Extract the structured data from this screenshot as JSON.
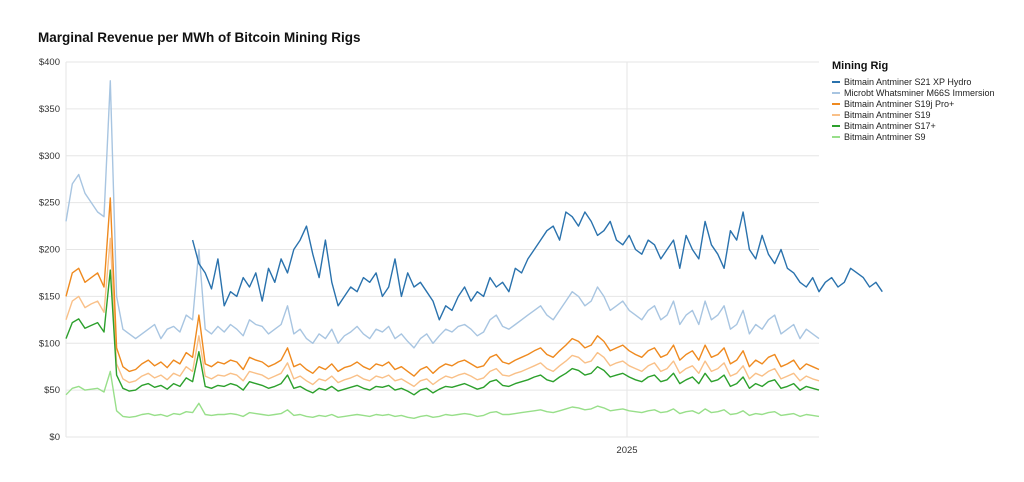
{
  "chart_data": {
    "type": "line",
    "title": "Marginal Revenue per MWh of Bitcoin Mining Rigs",
    "xlabel": "",
    "ylabel": "",
    "ylim": [
      0,
      400
    ],
    "y_ticks": [
      "$0",
      "$50",
      "$100",
      "$150",
      "$200",
      "$250",
      "$300",
      "$350",
      "$400"
    ],
    "x_ticks": [
      "2025"
    ],
    "x_tick_positions": [
      0.745
    ],
    "grid": true,
    "legend_position": "right",
    "legend_title": "Mining Rig",
    "n_points": 120,
    "series": [
      {
        "name": "Bitmain Antminer S21 XP Hydro",
        "color": "#2a72ad",
        "start_index": 20,
        "values": [
          210,
          185,
          175,
          158,
          190,
          140,
          155,
          150,
          170,
          160,
          175,
          145,
          180,
          165,
          190,
          175,
          200,
          210,
          225,
          195,
          170,
          210,
          165,
          140,
          150,
          160,
          155,
          170,
          165,
          175,
          150,
          160,
          190,
          150,
          175,
          160,
          165,
          155,
          145,
          125,
          140,
          135,
          150,
          160,
          145,
          155,
          150,
          170,
          160,
          165,
          155,
          180,
          175,
          190,
          200,
          210,
          220,
          225,
          210,
          240,
          235,
          225,
          240,
          230,
          215,
          220,
          230,
          210,
          205,
          215,
          200,
          195,
          210,
          205,
          190,
          200,
          210,
          180,
          215,
          200,
          190,
          230,
          205,
          195,
          180,
          220,
          210,
          240,
          200,
          190,
          215,
          195,
          185,
          200,
          180,
          175,
          165,
          160,
          170,
          155,
          165,
          170,
          160,
          165,
          180,
          175,
          170,
          160,
          165,
          155
        ]
      },
      {
        "name": "Microbt Whatsminer M66S Immersion",
        "color": "#a8c5e1",
        "start_index": 0,
        "values": [
          230,
          270,
          280,
          260,
          250,
          240,
          235,
          380,
          150,
          115,
          110,
          105,
          110,
          115,
          120,
          105,
          115,
          118,
          112,
          130,
          125,
          200,
          115,
          110,
          118,
          112,
          120,
          115,
          108,
          125,
          120,
          118,
          110,
          115,
          120,
          140,
          110,
          115,
          105,
          100,
          110,
          105,
          115,
          100,
          108,
          112,
          118,
          110,
          105,
          115,
          112,
          118,
          105,
          110,
          102,
          95,
          105,
          110,
          100,
          108,
          115,
          112,
          118,
          120,
          115,
          108,
          112,
          125,
          130,
          118,
          115,
          120,
          125,
          130,
          135,
          140,
          130,
          125,
          135,
          145,
          155,
          150,
          140,
          145,
          160,
          150,
          135,
          140,
          145,
          135,
          130,
          125,
          135,
          140,
          125,
          130,
          145,
          120,
          130,
          135,
          120,
          145,
          125,
          130,
          140,
          115,
          120,
          135,
          110,
          120,
          115,
          125,
          130,
          110,
          115,
          120,
          105,
          115,
          110,
          105
        ]
      },
      {
        "name": "Bitmain Antminer S19j Pro+",
        "color": "#ef8a1f",
        "start_index": 0,
        "values": [
          150,
          175,
          180,
          165,
          170,
          175,
          160,
          255,
          95,
          75,
          70,
          72,
          78,
          82,
          76,
          80,
          74,
          82,
          78,
          90,
          85,
          130,
          78,
          75,
          80,
          78,
          82,
          80,
          72,
          85,
          82,
          80,
          75,
          78,
          82,
          95,
          75,
          78,
          72,
          68,
          75,
          72,
          78,
          70,
          74,
          76,
          80,
          75,
          72,
          78,
          76,
          80,
          72,
          75,
          70,
          65,
          72,
          75,
          68,
          74,
          78,
          76,
          80,
          82,
          78,
          74,
          76,
          85,
          88,
          80,
          78,
          82,
          85,
          88,
          92,
          95,
          88,
          85,
          92,
          98,
          105,
          102,
          95,
          98,
          108,
          102,
          92,
          95,
          98,
          92,
          88,
          85,
          92,
          95,
          85,
          88,
          98,
          82,
          88,
          92,
          82,
          98,
          85,
          88,
          95,
          78,
          82,
          92,
          75,
          82,
          78,
          85,
          88,
          75,
          78,
          82,
          72,
          78,
          75,
          72
        ]
      },
      {
        "name": "Bitmain Antminer S19",
        "color": "#f9c088",
        "start_index": 0,
        "values": [
          125,
          145,
          150,
          138,
          142,
          145,
          133,
          212,
          78,
          62,
          58,
          60,
          65,
          68,
          63,
          66,
          61,
          68,
          65,
          75,
          70,
          108,
          65,
          62,
          66,
          65,
          68,
          66,
          60,
          70,
          68,
          66,
          62,
          65,
          68,
          79,
          62,
          65,
          60,
          56,
          62,
          60,
          65,
          58,
          61,
          63,
          66,
          62,
          60,
          65,
          63,
          66,
          60,
          62,
          58,
          54,
          60,
          62,
          56,
          61,
          65,
          63,
          66,
          68,
          65,
          61,
          63,
          70,
          73,
          66,
          65,
          68,
          70,
          73,
          76,
          79,
          73,
          70,
          76,
          81,
          87,
          85,
          79,
          81,
          90,
          85,
          76,
          79,
          81,
          76,
          73,
          70,
          76,
          79,
          70,
          73,
          81,
          68,
          73,
          76,
          68,
          81,
          70,
          73,
          79,
          65,
          68,
          76,
          62,
          68,
          65,
          70,
          73,
          62,
          65,
          68,
          60,
          65,
          62,
          60
        ]
      },
      {
        "name": "Bitmain Antminer S17+",
        "color": "#2ca02c",
        "start_index": 0,
        "values": [
          105,
          122,
          126,
          116,
          119,
          122,
          112,
          178,
          66,
          52,
          49,
          50,
          55,
          57,
          53,
          55,
          51,
          57,
          54,
          63,
          59,
          91,
          54,
          52,
          55,
          54,
          57,
          55,
          50,
          59,
          57,
          55,
          52,
          54,
          57,
          66,
          52,
          54,
          50,
          47,
          52,
          50,
          54,
          49,
          51,
          53,
          55,
          52,
          50,
          54,
          53,
          55,
          50,
          52,
          49,
          45,
          50,
          52,
          47,
          51,
          54,
          53,
          55,
          57,
          54,
          51,
          53,
          59,
          61,
          55,
          54,
          57,
          59,
          61,
          64,
          66,
          61,
          59,
          64,
          68,
          73,
          71,
          66,
          68,
          75,
          71,
          64,
          66,
          68,
          64,
          61,
          59,
          64,
          66,
          59,
          61,
          68,
          57,
          61,
          64,
          57,
          68,
          59,
          61,
          66,
          54,
          57,
          64,
          52,
          57,
          54,
          59,
          61,
          52,
          54,
          57,
          50,
          54,
          52,
          50
        ]
      },
      {
        "name": "Bitmain Antminer S9",
        "color": "#98df8a",
        "start_index": 0,
        "values": [
          45,
          52,
          54,
          50,
          51,
          52,
          48,
          70,
          28,
          22,
          21,
          22,
          24,
          25,
          23,
          24,
          22,
          25,
          24,
          27,
          26,
          36,
          24,
          23,
          24,
          24,
          25,
          24,
          22,
          26,
          25,
          24,
          23,
          24,
          25,
          29,
          23,
          24,
          22,
          21,
          23,
          22,
          24,
          21,
          22,
          23,
          24,
          23,
          22,
          24,
          23,
          24,
          22,
          23,
          21,
          20,
          22,
          23,
          21,
          22,
          24,
          23,
          24,
          25,
          24,
          22,
          23,
          26,
          27,
          24,
          24,
          25,
          26,
          27,
          28,
          29,
          27,
          26,
          28,
          30,
          32,
          31,
          29,
          30,
          33,
          31,
          28,
          29,
          30,
          28,
          27,
          26,
          28,
          29,
          26,
          27,
          30,
          25,
          27,
          28,
          25,
          30,
          26,
          27,
          29,
          24,
          25,
          28,
          23,
          25,
          24,
          26,
          27,
          23,
          24,
          25,
          22,
          24,
          23,
          22
        ]
      }
    ]
  }
}
